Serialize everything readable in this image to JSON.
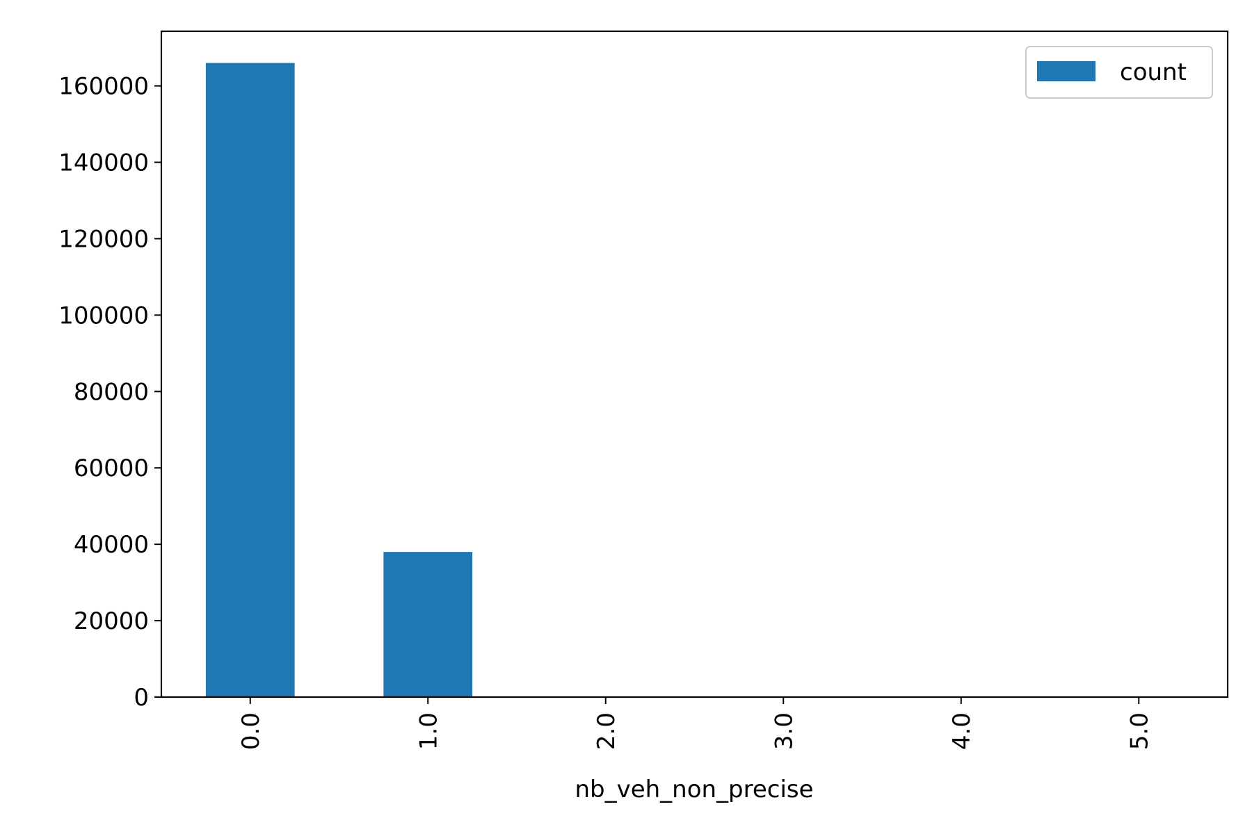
{
  "chart_data": {
    "type": "bar",
    "categories": [
      "0.0",
      "1.0",
      "2.0",
      "3.0",
      "4.0",
      "5.0"
    ],
    "series": [
      {
        "name": "count",
        "values": [
          166000,
          38000,
          60,
          8,
          2,
          1
        ],
        "color": "#1f77b4"
      }
    ],
    "xlabel": "nb_veh_non_precise",
    "ylabel": "",
    "ylim": [
      0,
      174300
    ],
    "yticks": [
      0,
      20000,
      40000,
      60000,
      80000,
      100000,
      120000,
      140000,
      160000
    ],
    "ytick_labels": [
      "0",
      "20000",
      "40000",
      "60000",
      "80000",
      "100000",
      "120000",
      "140000",
      "160000"
    ],
    "xtick_rotation": "vertical",
    "legend": {
      "position": "top-right",
      "entries": [
        "count"
      ]
    },
    "grid": false
  }
}
